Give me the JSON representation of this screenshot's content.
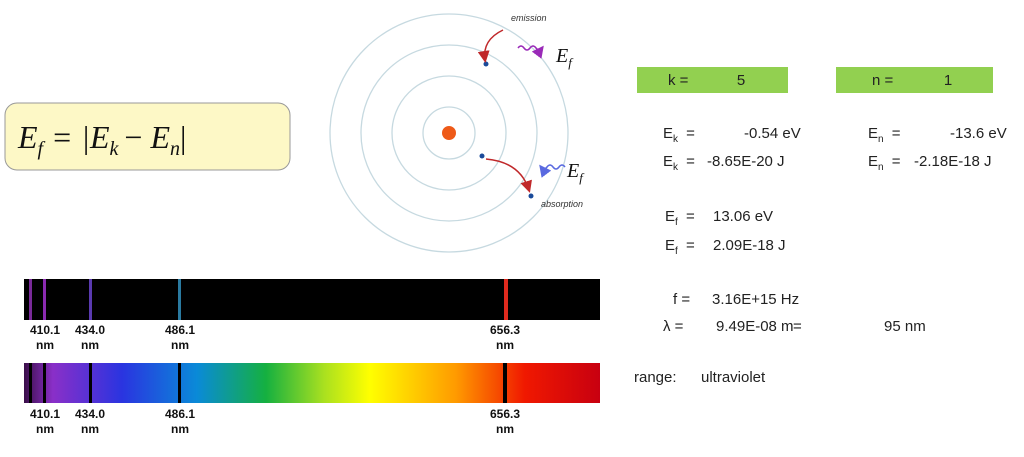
{
  "formula": {
    "e1": "E",
    "s1": "f",
    "eq": "=",
    "e2": "|E",
    "s2": "k",
    "minus": "−",
    "e3": "E",
    "s3": "n",
    "bar": "|"
  },
  "diagram": {
    "emission": "emission",
    "absorption": "absorption",
    "photon_top": {
      "e": "E",
      "sub": "f"
    },
    "photon_bottom": {
      "e": "E",
      "sub": "f"
    }
  },
  "inputs": {
    "k_label": "k =",
    "k": "5",
    "n_label": "n =",
    "n": "1"
  },
  "results": {
    "ek_ev": {
      "e": "E",
      "sub": "k",
      "eq": " =",
      "value": "-0.54 eV"
    },
    "en_ev": {
      "e": "E",
      "sub": "n",
      "eq": " =",
      "value": "-13.6 eV"
    },
    "ek_j": {
      "e": "E",
      "sub": "k",
      "eq": " =",
      "value": "-8.65E-20 J"
    },
    "en_j": {
      "e": "E",
      "sub": "n",
      "eq": " =",
      "value": "-2.18E-18 J"
    },
    "ef_ev": {
      "e": "E",
      "sub": "f",
      "eq": " =",
      "value": "13.06 eV"
    },
    "ef_j": {
      "e": "E",
      "sub": "f",
      "eq": " =",
      "value": "2.09E-18 J"
    },
    "freq": {
      "label": "f =",
      "value": "3.16E+15 Hz"
    },
    "wavelength": {
      "label": "λ =",
      "value": "9.49E-08 m",
      "eq": "=",
      "nm": "95 nm"
    },
    "range": {
      "label": "range:",
      "value": "ultraviolet"
    }
  },
  "spectrum_top": [
    {
      "wl": "410.1",
      "unit": "nm"
    },
    {
      "wl": "434.0",
      "unit": "nm"
    },
    {
      "wl": "486.1",
      "unit": "nm"
    },
    {
      "wl": "656.3",
      "unit": "nm"
    }
  ],
  "spectrum_bottom": [
    {
      "wl": "410.1",
      "unit": "nm"
    },
    {
      "wl": "434.0",
      "unit": "nm"
    },
    {
      "wl": "486.1",
      "unit": "nm"
    },
    {
      "wl": "656.3",
      "unit": "nm"
    }
  ]
}
